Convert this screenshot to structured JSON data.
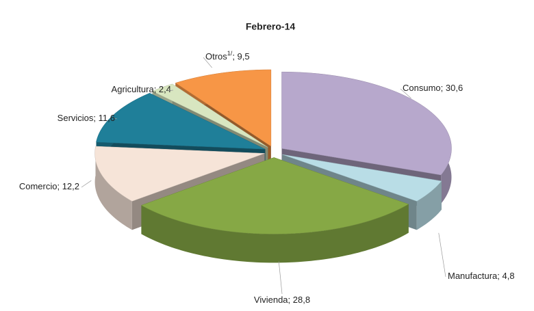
{
  "chart_data": {
    "type": "pie3d",
    "title": "Febrero-14",
    "categories": [
      "Consumo",
      "Manufactura",
      "Vivienda",
      "Comercio",
      "Servicios",
      "Agricultura",
      "Otros"
    ],
    "category_notes": [
      null,
      null,
      null,
      null,
      null,
      null,
      "1/"
    ],
    "values": [
      30.6,
      4.8,
      28.8,
      12.2,
      11.6,
      2.4,
      9.5
    ],
    "value_labels": [
      "30,6",
      "4,8",
      "28,8",
      "12,2",
      "11,6",
      "2,4",
      "9,5"
    ],
    "label_separator": "; ",
    "colors": [
      "#b7a8cc",
      "#b9dde6",
      "#86a845",
      "#f6e4d8",
      "#1f7f99",
      "#d8e6c0",
      "#f79646"
    ]
  }
}
